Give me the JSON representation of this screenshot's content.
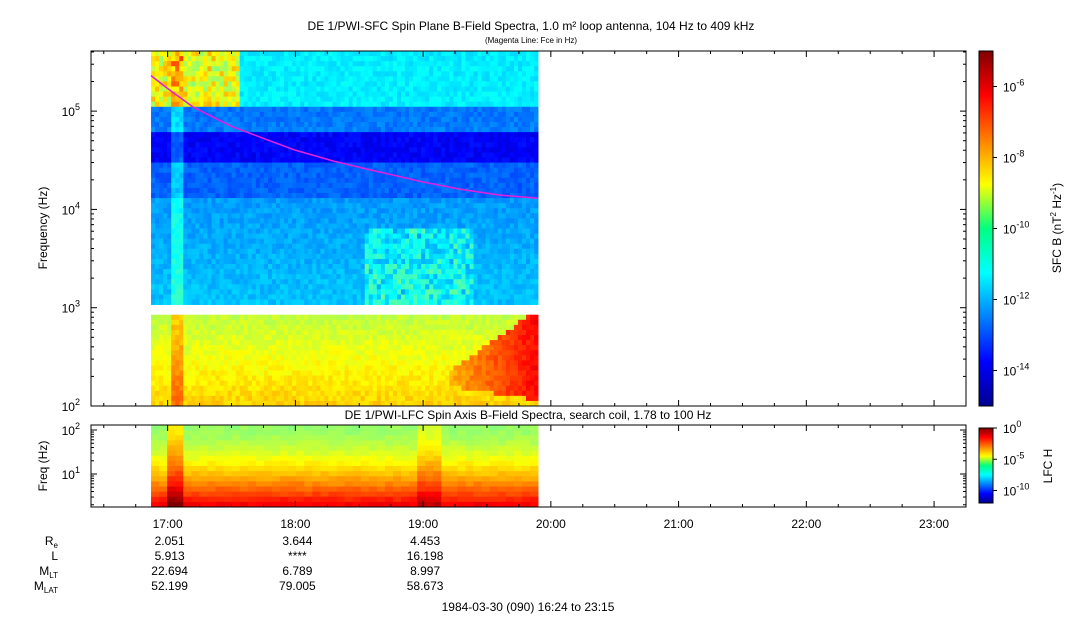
{
  "chart_data": [
    {
      "type": "heatmap",
      "title": "DE 1/PWI-SFC  Spin Plane B-Field Spectra, 1.0 m² loop antenna, 104 Hz to 409 kHz",
      "subtitle": "(Magenta Line: Fce in Hz)",
      "ylabel": "Frequency (Hz)",
      "yscale": "log",
      "ylim": [
        100,
        409000
      ],
      "y_ticks": [
        {
          "label": "10",
          "exp": "2",
          "value": 100
        },
        {
          "label": "10",
          "exp": "3",
          "value": 1000
        },
        {
          "label": "10",
          "exp": "4",
          "value": 10000
        },
        {
          "label": "10",
          "exp": "5",
          "value": 100000
        }
      ],
      "data_time_range_hours": [
        16.87,
        19.9
      ],
      "gap_frequency_hz": [
        880,
        1050
      ],
      "fce_line": {
        "name": "Fce",
        "color": "#dd22dd",
        "t": [
          16.87,
          17.0,
          17.2,
          17.5,
          17.8,
          18.0,
          18.3,
          18.6,
          19.0,
          19.3,
          19.6,
          19.9
        ],
        "freq_hz": [
          230000,
          170000,
          110000,
          70000,
          50000,
          40000,
          31000,
          25000,
          19000,
          16000,
          14000,
          13000
        ]
      },
      "colorbar": {
        "label": "SFC B (nT",
        "label_sup": "2",
        "label_rest": " Hz",
        "label_sup2": "-1",
        "label_end": ")",
        "scale": "log",
        "range": [
          "1e-15",
          "1e-5"
        ],
        "ticks": [
          {
            "label": "10",
            "exp": "-6"
          },
          {
            "label": "10",
            "exp": "-8"
          },
          {
            "label": "10",
            "exp": "-10"
          },
          {
            "label": "10",
            "exp": "-12"
          },
          {
            "label": "10",
            "exp": "-14"
          }
        ]
      }
    },
    {
      "type": "heatmap",
      "title": "DE 1/PWI-LFC  Spin Axis B-Field Spectra, search coil, 1.78 to 100 Hz",
      "ylabel": "Freq (Hz)",
      "yscale": "log",
      "ylim": [
        1.78,
        130
      ],
      "y_ticks": [
        {
          "label": "10",
          "exp": "1",
          "value": 10
        },
        {
          "label": "10",
          "exp": "2",
          "value": 100
        }
      ],
      "data_time_range_hours": [
        16.87,
        19.9
      ],
      "colorbar": {
        "label": "LFC H",
        "scale": "log",
        "range": [
          "1e-12",
          "1e0"
        ],
        "ticks": [
          {
            "label": "10",
            "exp": "0"
          },
          {
            "label": "10",
            "exp": "-5"
          },
          {
            "label": "10",
            "exp": "-10"
          }
        ]
      }
    }
  ],
  "x_axis": {
    "range_hours": [
      16.4,
      23.25
    ],
    "ticks": [
      {
        "label": "17:00",
        "value": 17
      },
      {
        "label": "18:00",
        "value": 18
      },
      {
        "label": "19:00",
        "value": 19
      },
      {
        "label": "20:00",
        "value": 20
      },
      {
        "label": "21:00",
        "value": 21
      },
      {
        "label": "22:00",
        "value": 22
      },
      {
        "label": "23:00",
        "value": 23
      }
    ]
  },
  "ephemeris": {
    "rows": [
      {
        "label": "R",
        "sub": "e",
        "values": [
          "2.051",
          "3.644",
          "4.453"
        ]
      },
      {
        "label": "L",
        "sub": "",
        "values": [
          "5.913",
          "****",
          "16.198"
        ]
      },
      {
        "label": "M",
        "sub": "LT",
        "values": [
          "22.694",
          "6.789",
          "8.997"
        ]
      },
      {
        "label": "M",
        "sub": "LAT",
        "values": [
          "52.199",
          "79.005",
          "58.673"
        ]
      }
    ]
  },
  "footer": "1984-03-30 (090) 16:24 to 23:15"
}
